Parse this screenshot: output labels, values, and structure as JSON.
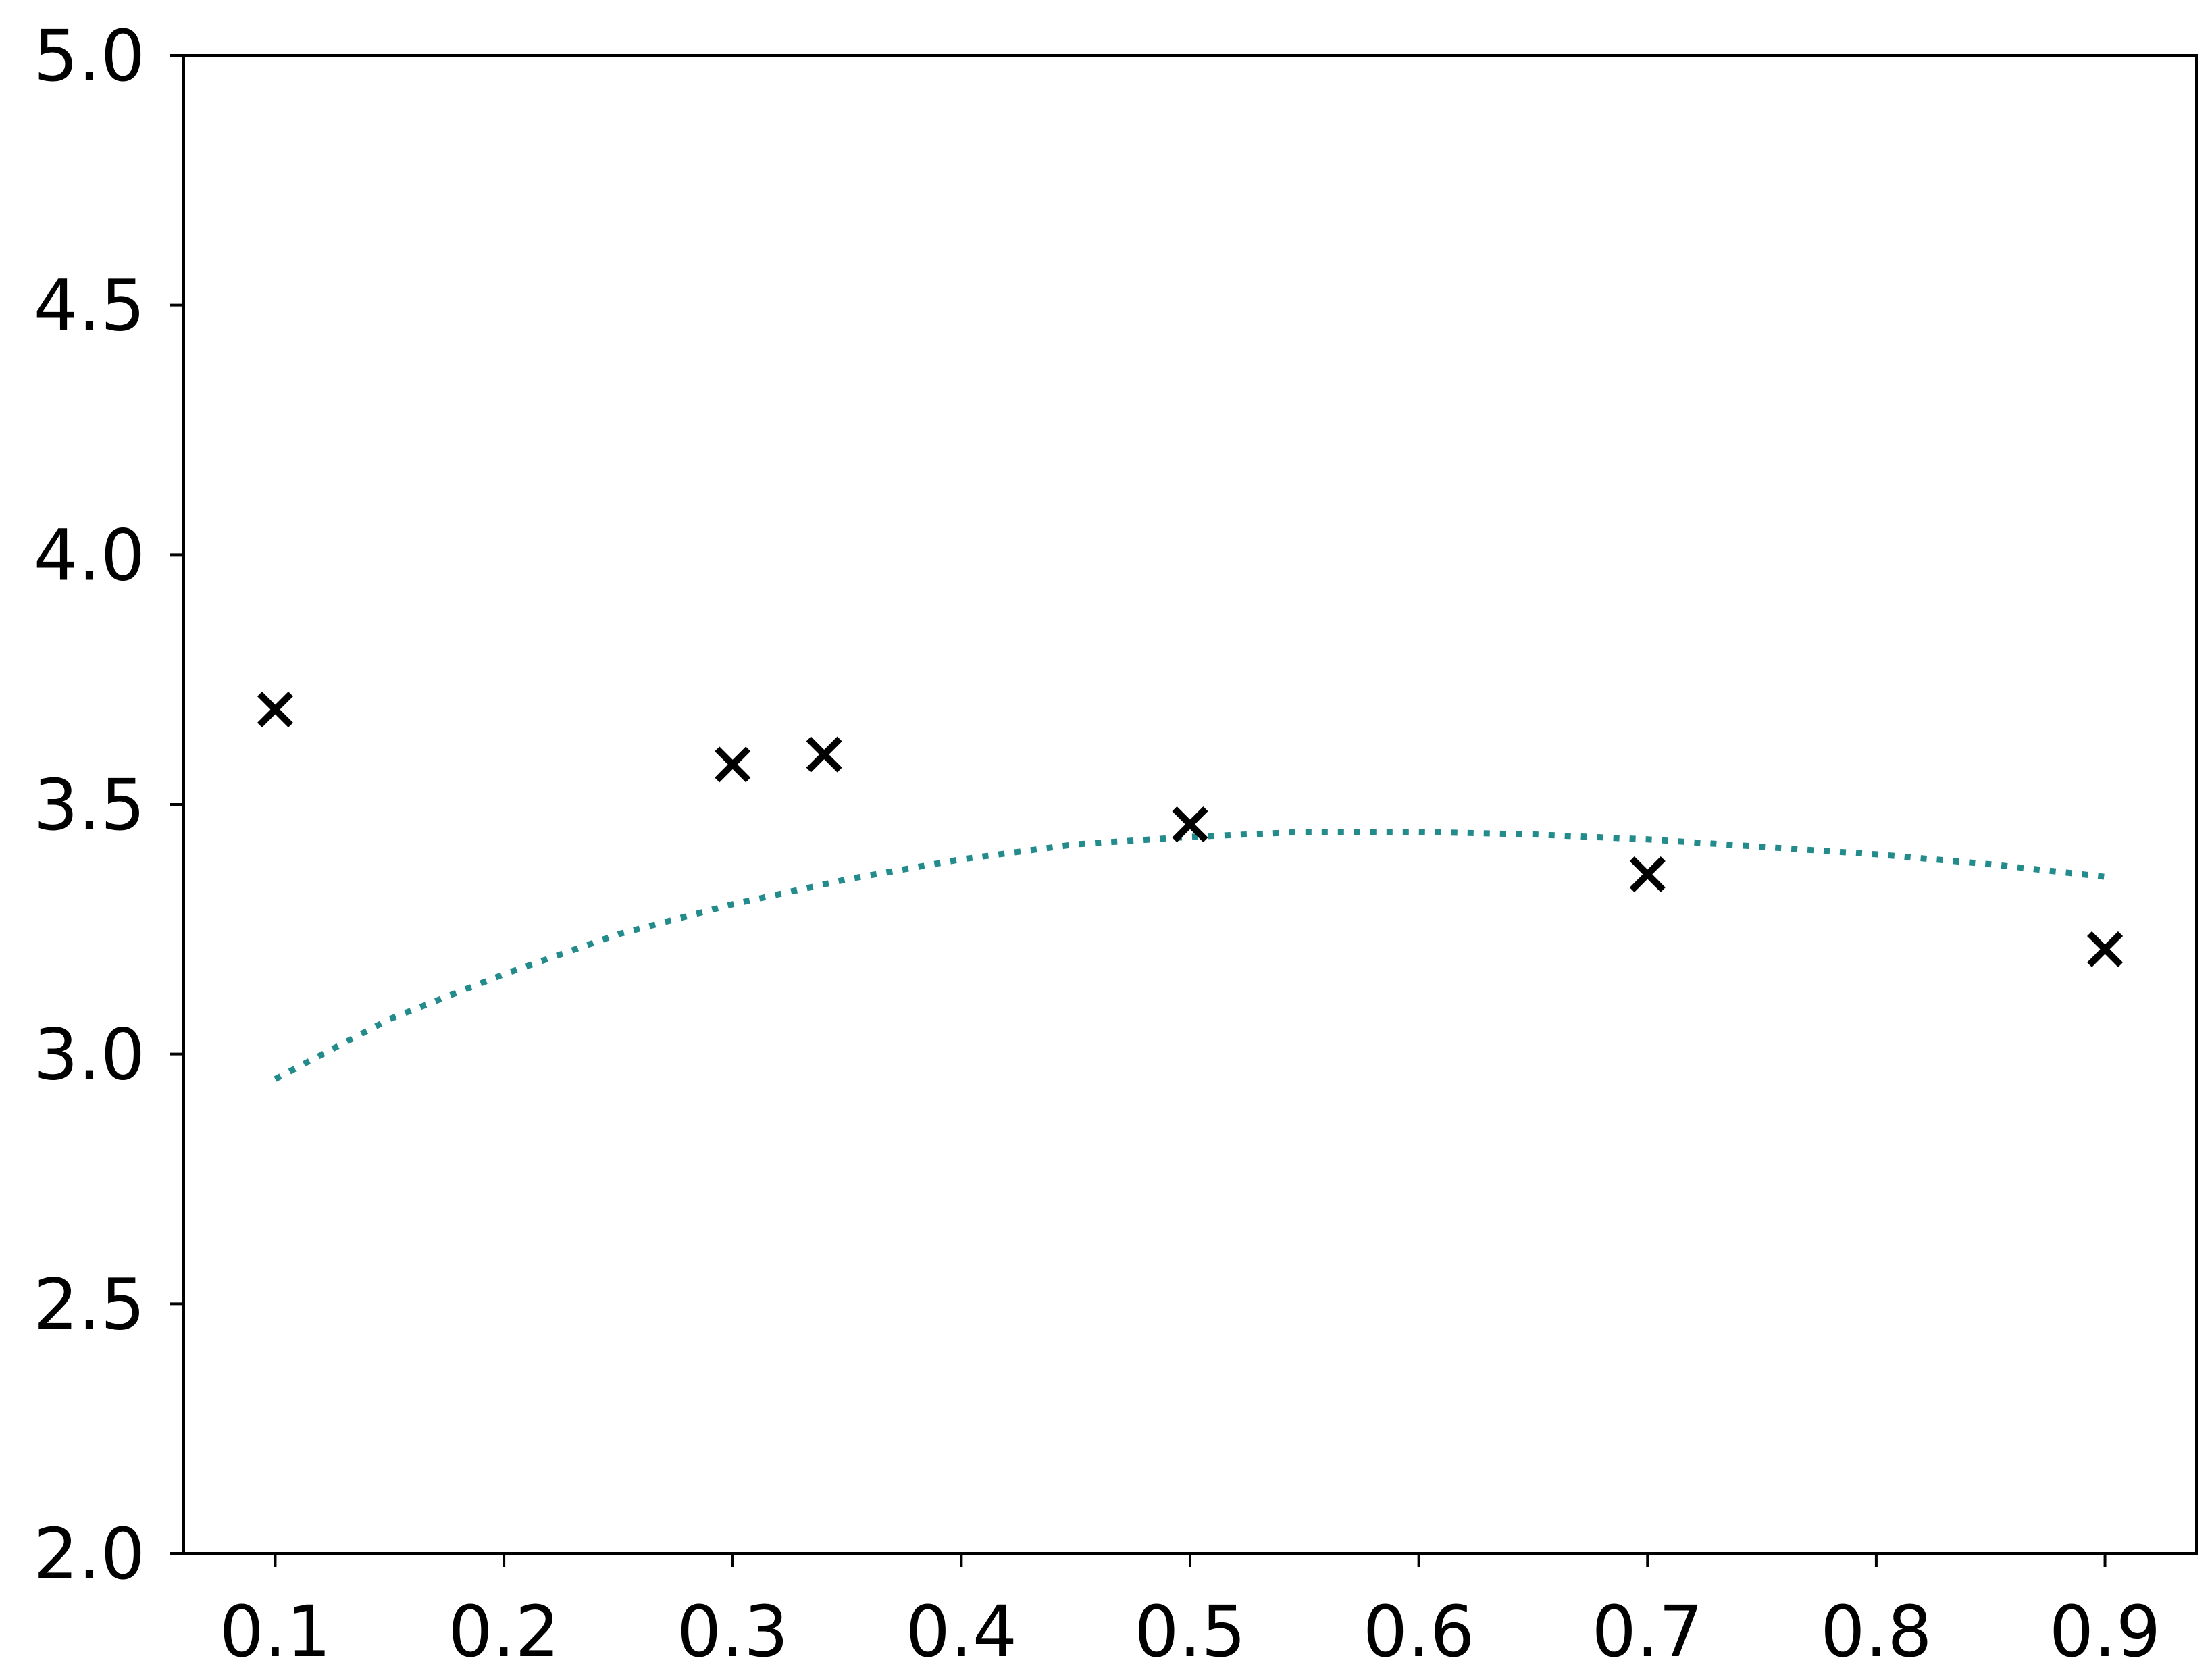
{
  "chart_data": {
    "type": "scatter",
    "title": "",
    "xlabel": "",
    "ylabel": "",
    "xlim": [
      0.06,
      0.94
    ],
    "ylim": [
      2.0,
      5.0
    ],
    "grid": false,
    "x_ticks": [
      "0.1",
      "0.2",
      "0.3",
      "0.4",
      "0.5",
      "0.6",
      "0.7",
      "0.8",
      "0.9"
    ],
    "y_ticks": [
      "2.0",
      "2.5",
      "3.0",
      "3.5",
      "4.0",
      "4.5",
      "5.0"
    ],
    "series": [
      {
        "type": "scatter",
        "marker": "x",
        "color": "#000000",
        "points": [
          {
            "x": 0.1,
            "y": 3.69
          },
          {
            "x": 0.3,
            "y": 3.58
          },
          {
            "x": 0.34,
            "y": 3.6
          },
          {
            "x": 0.5,
            "y": 3.46
          },
          {
            "x": 0.7,
            "y": 3.36
          },
          {
            "x": 0.9,
            "y": 3.21
          }
        ]
      },
      {
        "type": "line",
        "style": "dotted",
        "color": "#238b8b",
        "points": [
          {
            "x": 0.1,
            "y": 2.95
          },
          {
            "x": 0.15,
            "y": 3.07
          },
          {
            "x": 0.2,
            "y": 3.16
          },
          {
            "x": 0.25,
            "y": 3.24
          },
          {
            "x": 0.3,
            "y": 3.3
          },
          {
            "x": 0.35,
            "y": 3.35
          },
          {
            "x": 0.4,
            "y": 3.39
          },
          {
            "x": 0.45,
            "y": 3.42
          },
          {
            "x": 0.5,
            "y": 3.435
          },
          {
            "x": 0.55,
            "y": 3.445
          },
          {
            "x": 0.6,
            "y": 3.445
          },
          {
            "x": 0.65,
            "y": 3.44
          },
          {
            "x": 0.7,
            "y": 3.43
          },
          {
            "x": 0.75,
            "y": 3.415
          },
          {
            "x": 0.8,
            "y": 3.4
          },
          {
            "x": 0.85,
            "y": 3.38
          },
          {
            "x": 0.9,
            "y": 3.355
          }
        ]
      }
    ]
  }
}
